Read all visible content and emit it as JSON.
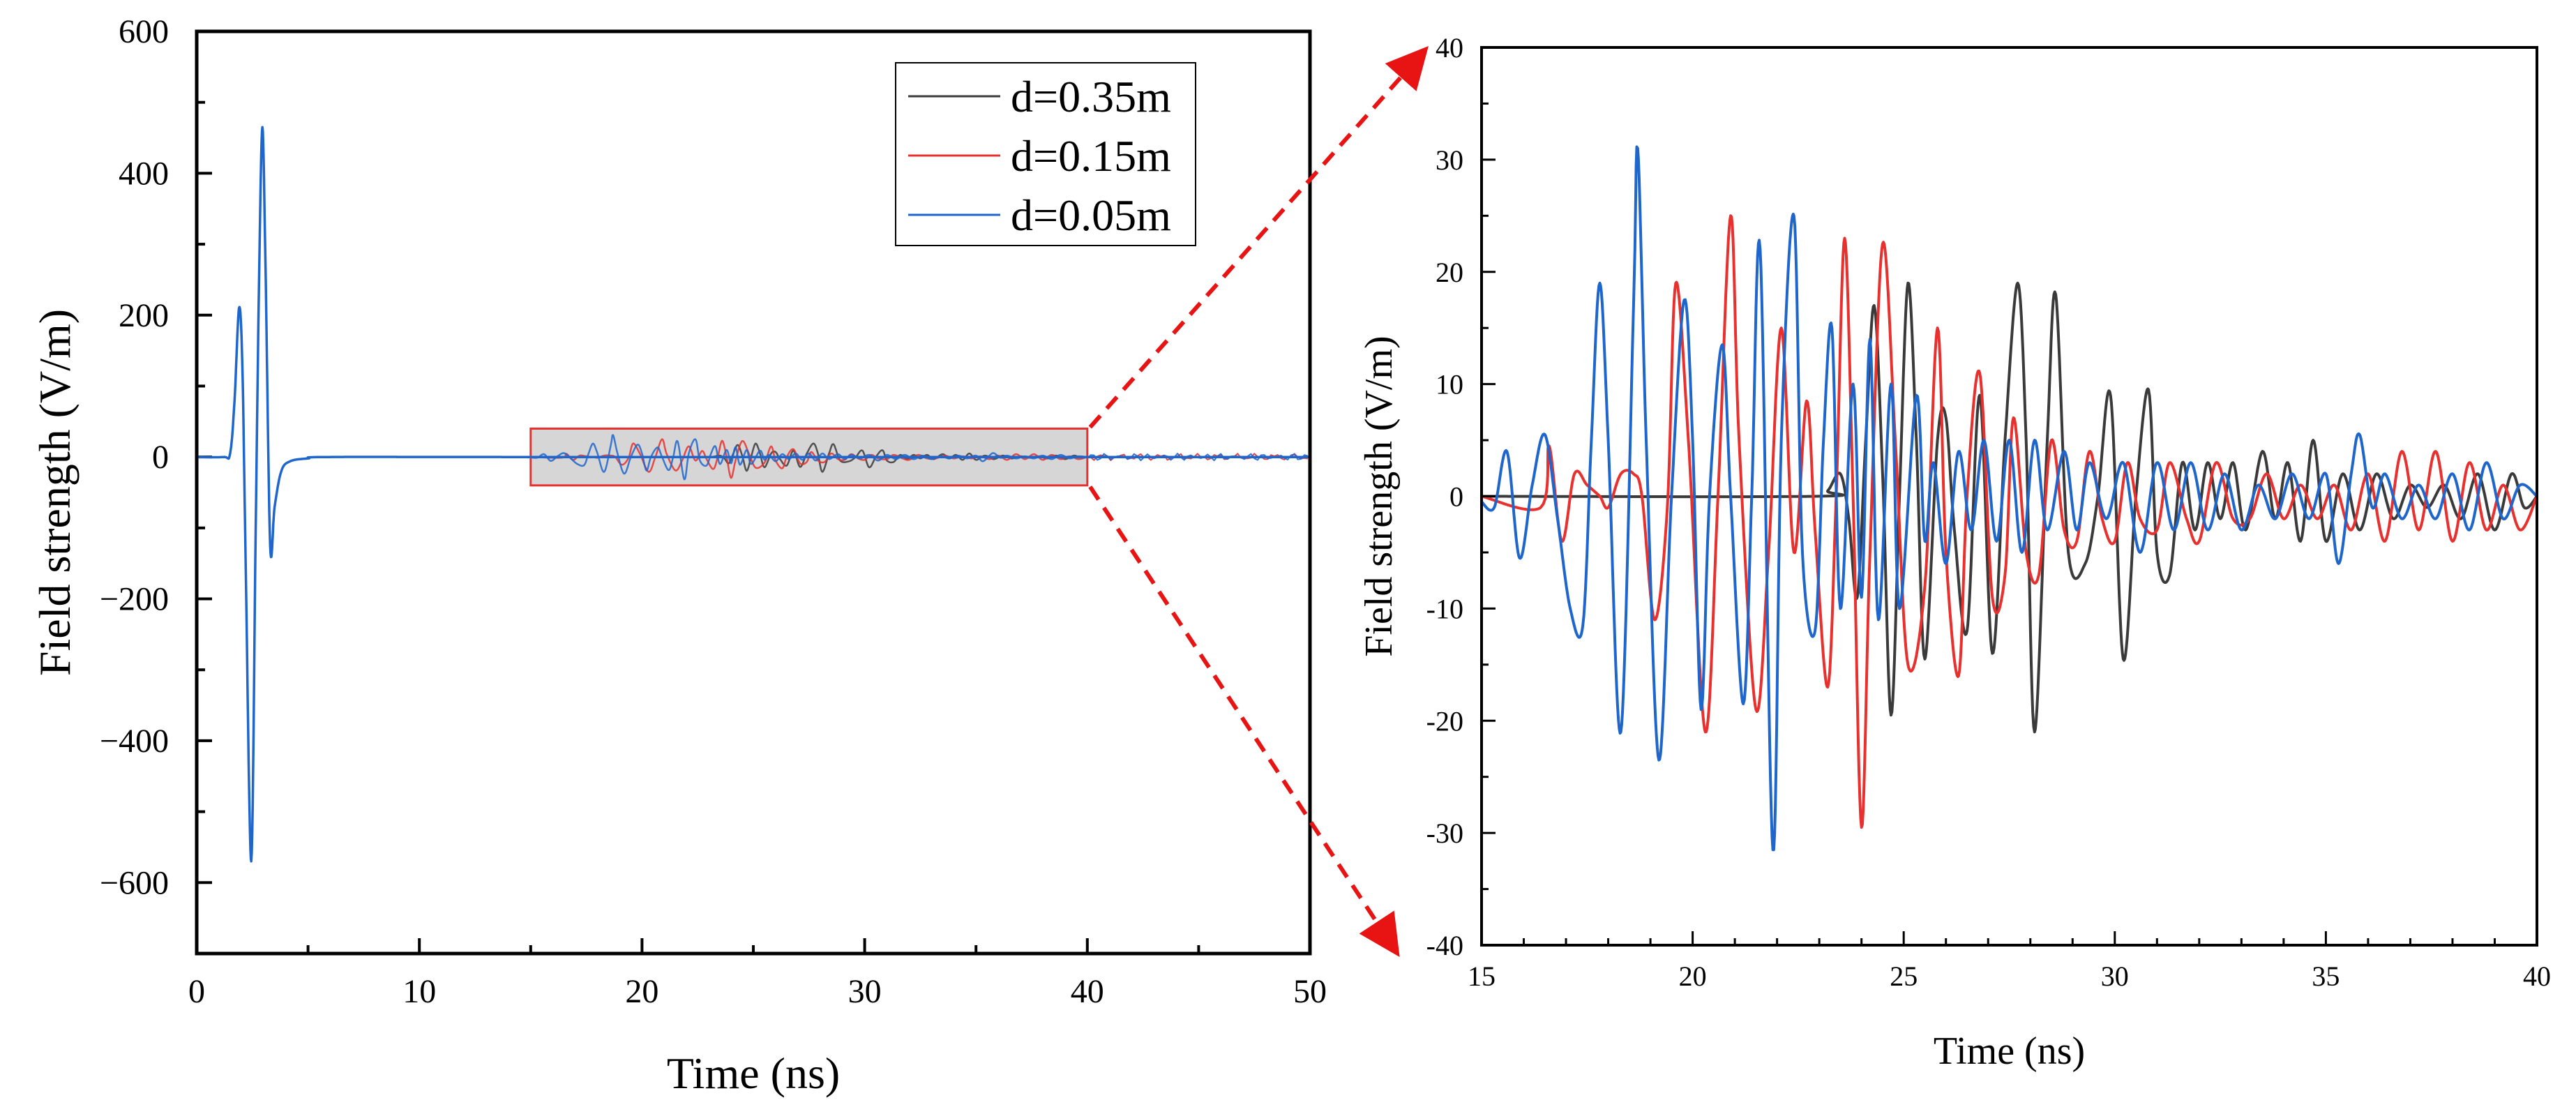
{
  "colors": {
    "d035": "#3a3a3a",
    "d015": "#e8312e",
    "d005": "#1f66cc",
    "highlight_fill": "#d6d6d6",
    "highlight_border": "#e8312e",
    "arrow": "#e81414"
  },
  "chart_data": [
    {
      "id": "left",
      "type": "line",
      "title": "",
      "xlabel": "Time (ns)",
      "ylabel": "Field strength (V/m)",
      "xlim": [
        0,
        50
      ],
      "ylim": [
        -700,
        600
      ],
      "xticks": [
        0,
        10,
        20,
        30,
        40,
        50
      ],
      "xtick_labels": [
        "0",
        "10",
        "20",
        "30",
        "40",
        "50"
      ],
      "yticks": [
        600,
        400,
        200,
        0,
        -200,
        -400,
        -600
      ],
      "ytick_labels": [
        "600",
        "400",
        "200",
        "0",
        "−200",
        "−400",
        "−600"
      ],
      "legend": {
        "position": "top-right",
        "entries": [
          "d=0.35m",
          "d=0.15m",
          "d=0.05m"
        ]
      },
      "highlight_region": {
        "x": [
          15,
          40
        ],
        "y": [
          -40,
          40
        ]
      },
      "series": [
        {
          "name": "d=0.05m",
          "color": "#1f66cc",
          "points": [
            [
              0,
              0
            ],
            [
              1.2,
              0
            ],
            [
              1.5,
              5
            ],
            [
              1.7,
              80
            ],
            [
              1.9,
              210
            ],
            [
              2.05,
              130
            ],
            [
              2.2,
              -150
            ],
            [
              2.45,
              -570
            ],
            [
              2.65,
              -100
            ],
            [
              2.8,
              250
            ],
            [
              2.95,
              465
            ],
            [
              3.1,
              250
            ],
            [
              3.3,
              -125
            ],
            [
              3.5,
              -70
            ],
            [
              3.8,
              -20
            ],
            [
              4.2,
              -6
            ],
            [
              5,
              -2
            ],
            [
              6,
              0
            ],
            [
              15,
              0
            ],
            [
              50,
              0
            ]
          ]
        }
      ]
    },
    {
      "id": "right",
      "type": "line",
      "title": "",
      "xlabel": "Time (ns)",
      "ylabel": "Field strength (V/m)",
      "xlim": [
        15,
        40
      ],
      "ylim": [
        -40,
        40
      ],
      "xticks": [
        15,
        20,
        25,
        30,
        35,
        40
      ],
      "xtick_labels": [
        "15",
        "20",
        "25",
        "30",
        "35",
        "40"
      ],
      "yticks": [
        40,
        30,
        20,
        10,
        0,
        -10,
        -20,
        -30,
        -40
      ],
      "ytick_labels": [
        "40",
        "30",
        "20",
        "10",
        "0",
        "-10",
        "-20",
        "-30",
        "-40"
      ],
      "series": [
        {
          "name": "d=0.35m",
          "color": "#3a3a3a",
          "points": [
            [
              15,
              0
            ],
            [
              22.9,
              0
            ],
            [
              23.2,
              0.5
            ],
            [
              23.5,
              2
            ],
            [
              23.7,
              -2
            ],
            [
              23.9,
              -9
            ],
            [
              24.1,
              5
            ],
            [
              24.3,
              17
            ],
            [
              24.5,
              2
            ],
            [
              24.7,
              -19.5
            ],
            [
              24.9,
              0
            ],
            [
              25.1,
              19
            ],
            [
              25.3,
              5
            ],
            [
              25.5,
              -14.5
            ],
            [
              25.8,
              5
            ],
            [
              26.0,
              7
            ],
            [
              26.2,
              -3
            ],
            [
              26.5,
              -12
            ],
            [
              26.8,
              9
            ],
            [
              27.1,
              -14
            ],
            [
              27.4,
              5
            ],
            [
              27.7,
              19
            ],
            [
              27.9,
              5
            ],
            [
              28.1,
              -21
            ],
            [
              28.4,
              5
            ],
            [
              28.6,
              18
            ],
            [
              28.9,
              -5
            ],
            [
              29.3,
              -6
            ],
            [
              29.6,
              0
            ],
            [
              29.9,
              9
            ],
            [
              30.2,
              -14.5
            ],
            [
              30.5,
              0
            ],
            [
              30.8,
              9.5
            ],
            [
              31.0,
              -5
            ],
            [
              31.3,
              -7
            ],
            [
              31.6,
              3
            ],
            [
              31.9,
              -3
            ],
            [
              32.2,
              3
            ],
            [
              32.5,
              -2
            ],
            [
              32.8,
              3
            ],
            [
              33.1,
              -3
            ],
            [
              33.5,
              4
            ],
            [
              33.8,
              -2
            ],
            [
              34.1,
              3
            ],
            [
              34.4,
              -4
            ],
            [
              34.7,
              5
            ],
            [
              35.0,
              -4
            ],
            [
              35.4,
              2
            ],
            [
              35.8,
              -3
            ],
            [
              36.2,
              2
            ],
            [
              36.6,
              -2
            ],
            [
              37.0,
              1
            ],
            [
              37.4,
              -1
            ],
            [
              37.8,
              1
            ],
            [
              38.2,
              -2
            ],
            [
              38.6,
              2
            ],
            [
              39.0,
              -3
            ],
            [
              39.4,
              2
            ],
            [
              39.7,
              -1
            ],
            [
              40,
              0
            ]
          ]
        },
        {
          "name": "d=0.15m",
          "color": "#e8312e",
          "points": [
            [
              15,
              0
            ],
            [
              16.4,
              -1
            ],
            [
              16.6,
              4.5
            ],
            [
              16.9,
              -4
            ],
            [
              17.2,
              2
            ],
            [
              17.5,
              1
            ],
            [
              17.8,
              0
            ],
            [
              18.0,
              -1
            ],
            [
              18.3,
              2
            ],
            [
              18.6,
              2
            ],
            [
              18.8,
              0
            ],
            [
              19.1,
              -11
            ],
            [
              19.4,
              -1
            ],
            [
              19.6,
              19
            ],
            [
              19.9,
              5
            ],
            [
              20.3,
              -21
            ],
            [
              20.6,
              0
            ],
            [
              20.9,
              25
            ],
            [
              21.1,
              5
            ],
            [
              21.5,
              -19
            ],
            [
              21.8,
              -5
            ],
            [
              22.1,
              15
            ],
            [
              22.4,
              -5
            ],
            [
              22.7,
              8.5
            ],
            [
              22.9,
              -3
            ],
            [
              23.2,
              -17
            ],
            [
              23.4,
              0
            ],
            [
              23.6,
              23
            ],
            [
              23.8,
              0
            ],
            [
              24.0,
              -29.5
            ],
            [
              24.2,
              -5
            ],
            [
              24.5,
              22.5
            ],
            [
              24.8,
              5
            ],
            [
              25.1,
              -15
            ],
            [
              25.5,
              -8
            ],
            [
              25.8,
              15
            ],
            [
              26.0,
              -5
            ],
            [
              26.3,
              -16
            ],
            [
              26.5,
              0
            ],
            [
              26.8,
              11
            ],
            [
              27.1,
              -9
            ],
            [
              27.4,
              -7
            ],
            [
              27.6,
              7
            ],
            [
              27.9,
              -5
            ],
            [
              28.2,
              -7
            ],
            [
              28.5,
              5
            ],
            [
              28.8,
              -3
            ],
            [
              29.1,
              -4
            ],
            [
              29.4,
              4
            ],
            [
              29.7,
              -2
            ],
            [
              30.0,
              -4
            ],
            [
              30.3,
              3
            ],
            [
              30.6,
              -2
            ],
            [
              31.0,
              -3
            ],
            [
              31.3,
              3
            ],
            [
              31.7,
              -2
            ],
            [
              32.0,
              -4
            ],
            [
              32.4,
              3
            ],
            [
              32.8,
              -2
            ],
            [
              33.2,
              -2
            ],
            [
              33.6,
              2
            ],
            [
              34.0,
              -2
            ],
            [
              34.4,
              1
            ],
            [
              34.8,
              -2
            ],
            [
              35.2,
              1
            ],
            [
              35.6,
              -3
            ],
            [
              36.0,
              2
            ],
            [
              36.4,
              -4
            ],
            [
              36.8,
              4
            ],
            [
              37.2,
              -3
            ],
            [
              37.6,
              4
            ],
            [
              38.0,
              -4
            ],
            [
              38.4,
              3
            ],
            [
              38.8,
              -3
            ],
            [
              39.2,
              1
            ],
            [
              39.6,
              -3
            ],
            [
              40,
              0
            ]
          ]
        },
        {
          "name": "d=0.05m",
          "color": "#1f66cc",
          "points": [
            [
              15,
              -0.5
            ],
            [
              15.3,
              -1
            ],
            [
              15.6,
              4
            ],
            [
              15.9,
              -5.5
            ],
            [
              16.2,
              1
            ],
            [
              16.5,
              5.5
            ],
            [
              16.8,
              -2
            ],
            [
              17.1,
              -10
            ],
            [
              17.4,
              -11.5
            ],
            [
              17.6,
              5
            ],
            [
              17.8,
              19
            ],
            [
              18.0,
              5
            ],
            [
              18.3,
              -21
            ],
            [
              18.6,
              17
            ],
            [
              18.7,
              31
            ],
            [
              18.9,
              5
            ],
            [
              19.2,
              -23.5
            ],
            [
              19.5,
              0
            ],
            [
              19.8,
              17.5
            ],
            [
              20.0,
              5
            ],
            [
              20.2,
              -19
            ],
            [
              20.4,
              0
            ],
            [
              20.7,
              13.5
            ],
            [
              20.9,
              0
            ],
            [
              21.2,
              -18.5
            ],
            [
              21.4,
              0
            ],
            [
              21.6,
              22
            ],
            [
              21.9,
              -31.5
            ],
            [
              22.1,
              5
            ],
            [
              22.4,
              25
            ],
            [
              22.6,
              -5
            ],
            [
              22.9,
              -12
            ],
            [
              23.1,
              5
            ],
            [
              23.3,
              15
            ],
            [
              23.5,
              -10
            ],
            [
              23.8,
              10
            ],
            [
              24.0,
              -9
            ],
            [
              24.2,
              14
            ],
            [
              24.4,
              -11
            ],
            [
              24.7,
              10
            ],
            [
              24.9,
              -10
            ],
            [
              25.3,
              9
            ],
            [
              25.5,
              -4
            ],
            [
              25.7,
              3
            ],
            [
              26.0,
              -6
            ],
            [
              26.3,
              4
            ],
            [
              26.6,
              -3
            ],
            [
              26.9,
              5
            ],
            [
              27.2,
              -4
            ],
            [
              27.5,
              5
            ],
            [
              27.8,
              -5
            ],
            [
              28.1,
              5
            ],
            [
              28.4,
              -3
            ],
            [
              28.8,
              4
            ],
            [
              29.1,
              -3
            ],
            [
              29.4,
              3
            ],
            [
              29.8,
              -2
            ],
            [
              30.2,
              3
            ],
            [
              30.6,
              -5
            ],
            [
              31.0,
              3
            ],
            [
              31.4,
              -3
            ],
            [
              31.8,
              3
            ],
            [
              32.2,
              -3
            ],
            [
              32.6,
              2
            ],
            [
              33.0,
              -3
            ],
            [
              33.4,
              1
            ],
            [
              33.8,
              -2
            ],
            [
              34.2,
              2
            ],
            [
              34.6,
              -2
            ],
            [
              35.0,
              2
            ],
            [
              35.3,
              -6
            ],
            [
              35.6,
              2
            ],
            [
              35.8,
              5.5
            ],
            [
              36.1,
              -1
            ],
            [
              36.4,
              2
            ],
            [
              36.8,
              -2
            ],
            [
              37.2,
              1
            ],
            [
              37.6,
              -2
            ],
            [
              38.0,
              2
            ],
            [
              38.4,
              -3
            ],
            [
              38.8,
              3
            ],
            [
              39.2,
              -2
            ],
            [
              39.6,
              1
            ],
            [
              40,
              0
            ]
          ]
        }
      ]
    }
  ]
}
